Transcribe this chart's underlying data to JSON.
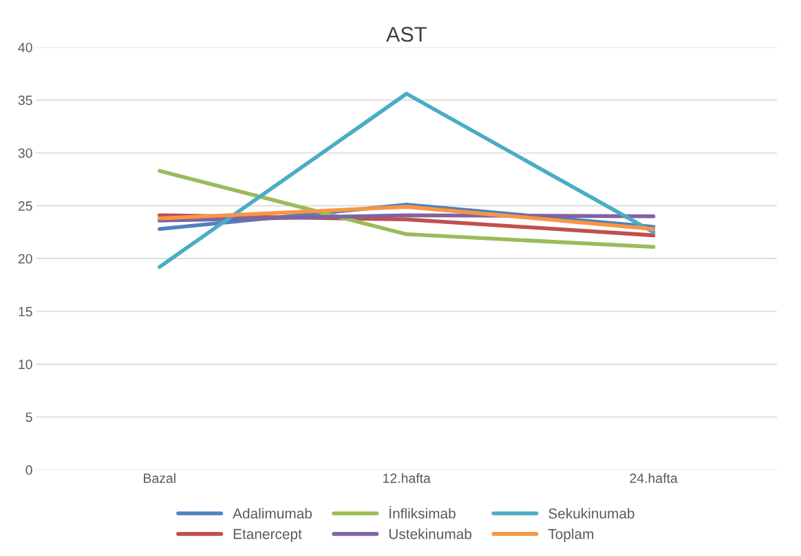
{
  "chart_data": {
    "type": "line",
    "title": "AST",
    "categories": [
      "Bazal",
      "12.hafta",
      "24.hafta"
    ],
    "series": [
      {
        "name": "Adalimumab",
        "color": "#4f81bd",
        "values": [
          22.8,
          25.1,
          23.0
        ]
      },
      {
        "name": "Etanercept",
        "color": "#c0504d",
        "values": [
          24.1,
          23.7,
          22.2
        ]
      },
      {
        "name": "İnfliksimab",
        "color": "#9bbb59",
        "values": [
          28.3,
          22.3,
          21.1
        ]
      },
      {
        "name": "Ustekinumab",
        "color": "#8064a2",
        "values": [
          23.6,
          24.1,
          24.0
        ]
      },
      {
        "name": "Sekukinumab",
        "color": "#4bacc6",
        "values": [
          19.2,
          35.6,
          22.5
        ]
      },
      {
        "name": "Toplam",
        "color": "#f79646",
        "values": [
          23.8,
          24.9,
          22.8
        ]
      }
    ],
    "ylim": [
      0,
      40
    ],
    "yticks": [
      0,
      5,
      10,
      15,
      20,
      25,
      30,
      35,
      40
    ],
    "grid": "y",
    "legend": "bottom",
    "marker": "none",
    "line_style": "solid"
  }
}
